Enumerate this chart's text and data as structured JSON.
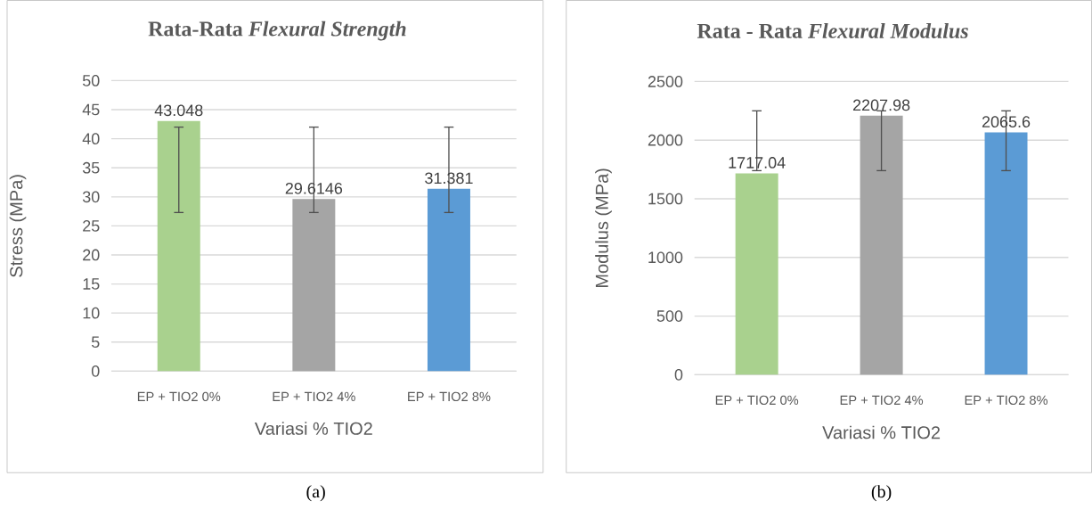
{
  "chart_data": [
    {
      "type": "bar",
      "title": "Rata-Rata *Flexural Strength*",
      "xlabel": "Variasi % TIO2",
      "ylabel": "Stress (MPa)",
      "categories": [
        "EP + TIO2 0%",
        "EP + TIO2 4%",
        "EP + TIO2 8%"
      ],
      "values": [
        43.048,
        29.6146,
        31.381
      ],
      "colors": [
        "#a9d18e",
        "#a5a5a5",
        "#5b9bd5"
      ],
      "errors": [
        [
          27.3,
          42
        ],
        [
          27.3,
          42
        ],
        [
          27.3,
          42
        ]
      ],
      "ylim": [
        0,
        50
      ],
      "yticks": [
        0,
        5,
        10,
        15,
        20,
        25,
        30,
        35,
        40,
        45,
        50
      ],
      "grid": "y",
      "data_labels": true,
      "annotations": [
        "(a)"
      ]
    },
    {
      "type": "bar",
      "title": "Rata - Rata *Flexural Modulus*",
      "xlabel": "Variasi % TIO2",
      "ylabel": "Modulus (MPa)",
      "categories": [
        "EP + TIO2 0%",
        "EP + TIO2 4%",
        "EP + TIO2 8%"
      ],
      "values": [
        1717.04,
        2207.98,
        2065.6
      ],
      "colors": [
        "#a9d18e",
        "#a5a5a5",
        "#5b9bd5"
      ],
      "errors": [
        [
          1740,
          2250
        ],
        [
          1740,
          2250
        ],
        [
          1740,
          2250
        ]
      ],
      "ylim": [
        0,
        2500
      ],
      "yticks": [
        0,
        500,
        1000,
        1500,
        2000,
        2500
      ],
      "grid": "y",
      "data_labels": true,
      "annotations": [
        "(b)"
      ]
    }
  ]
}
